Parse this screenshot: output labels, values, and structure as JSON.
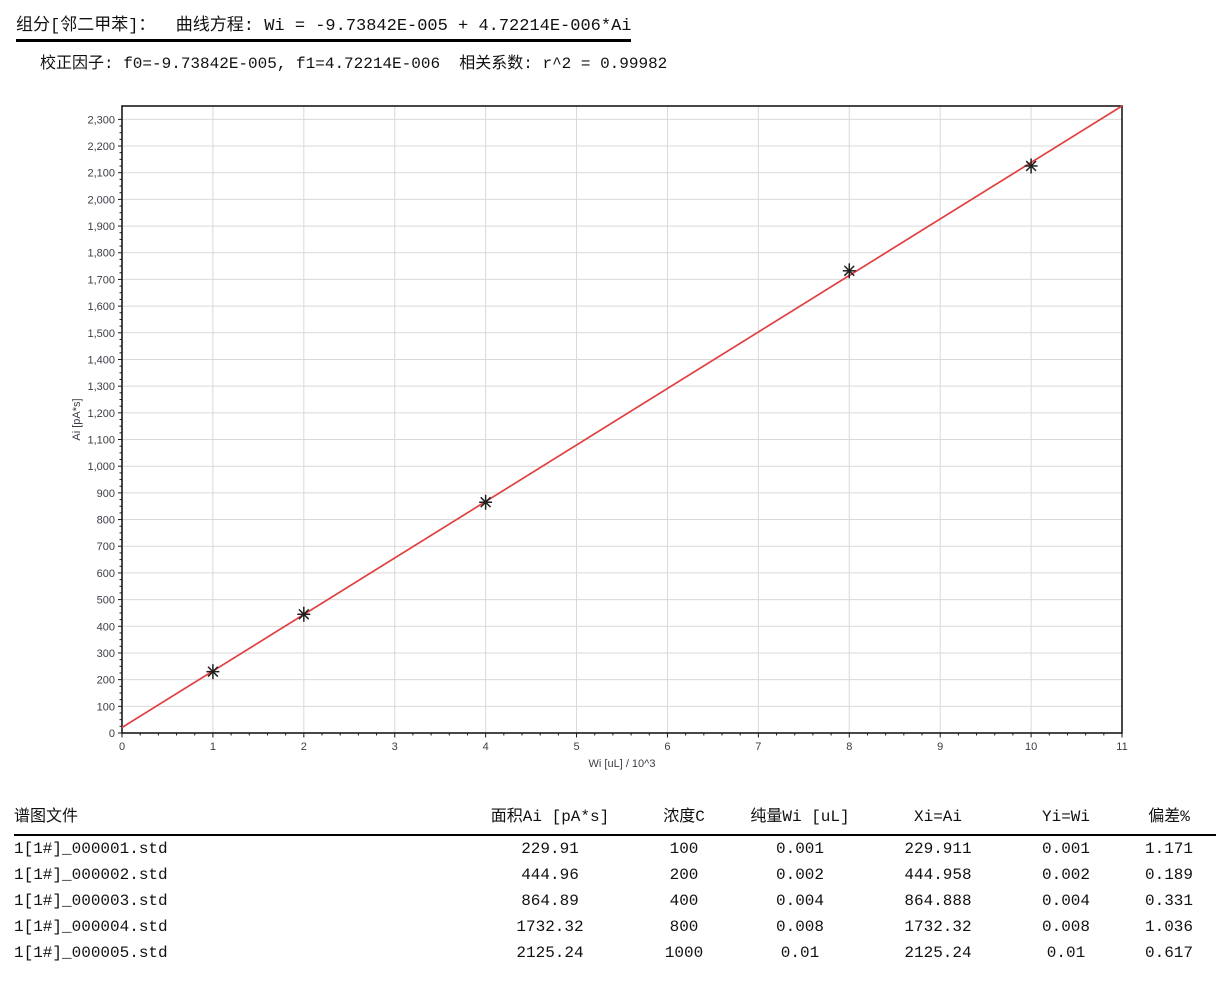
{
  "header": {
    "component_line": "组分[邻二甲苯]：  曲线方程: Wi = -9.73842E-005 + 4.72214E-006*Ai",
    "factors_line": "校正因子: f0=-9.73842E-005, f1=4.72214E-006  相关系数: r^2 = 0.99982",
    "component_name": "邻二甲苯",
    "equation": "Wi = -9.73842E-005 + 4.72214E-006*Ai",
    "f0": "-9.73842E-005",
    "f1": "4.72214E-006",
    "r_squared": "0.99982"
  },
  "chart_data": {
    "type": "scatter",
    "title": "",
    "xlabel": "Wi [uL] / 10^3",
    "ylabel": "Ai [pA*s]",
    "xlim": [
      0,
      11
    ],
    "ylim": [
      0,
      2350
    ],
    "x_major_step": 1,
    "x_minor_step": 0.2,
    "y_major_step": 100,
    "y_minor_step": 25,
    "y_label_max": 2300,
    "grid": true,
    "legend": "none",
    "points": [
      {
        "x": 1,
        "y": 229.91
      },
      {
        "x": 2,
        "y": 444.96
      },
      {
        "x": 4,
        "y": 864.89
      },
      {
        "x": 8,
        "y": 1732.32
      },
      {
        "x": 10,
        "y": 2125.24
      }
    ],
    "fit_line": {
      "intercept": 20.62,
      "slope": 211.77
    },
    "marker": {
      "shape": "asterisk-8",
      "color": "#1f1f1f"
    },
    "colors": {
      "line": "#e04040",
      "grid": "#d9d9d9",
      "frame": "#1a1a1a",
      "tick": "#1a1a1a",
      "tick_label": "#3c3c46"
    }
  },
  "table": {
    "headers": [
      "谱图文件",
      "面积Ai [pA*s]",
      "浓度C",
      "纯量Wi [uL]",
      "Xi=Ai",
      "Yi=Wi",
      "偏差%"
    ],
    "rows": [
      [
        "1[1#]_000001.std",
        "229.91",
        "100",
        "0.001",
        "229.911",
        "0.001",
        "1.171"
      ],
      [
        "1[1#]_000002.std",
        "444.96",
        "200",
        "0.002",
        "444.958",
        "0.002",
        "0.189"
      ],
      [
        "1[1#]_000003.std",
        "864.89",
        "400",
        "0.004",
        "864.888",
        "0.004",
        "0.331"
      ],
      [
        "1[1#]_000004.std",
        "1732.32",
        "800",
        "0.008",
        "1732.32",
        "0.008",
        "1.036"
      ],
      [
        "1[1#]_000005.std",
        "2125.24",
        "1000",
        "0.01",
        "2125.24",
        "0.01",
        "0.617"
      ]
    ]
  }
}
